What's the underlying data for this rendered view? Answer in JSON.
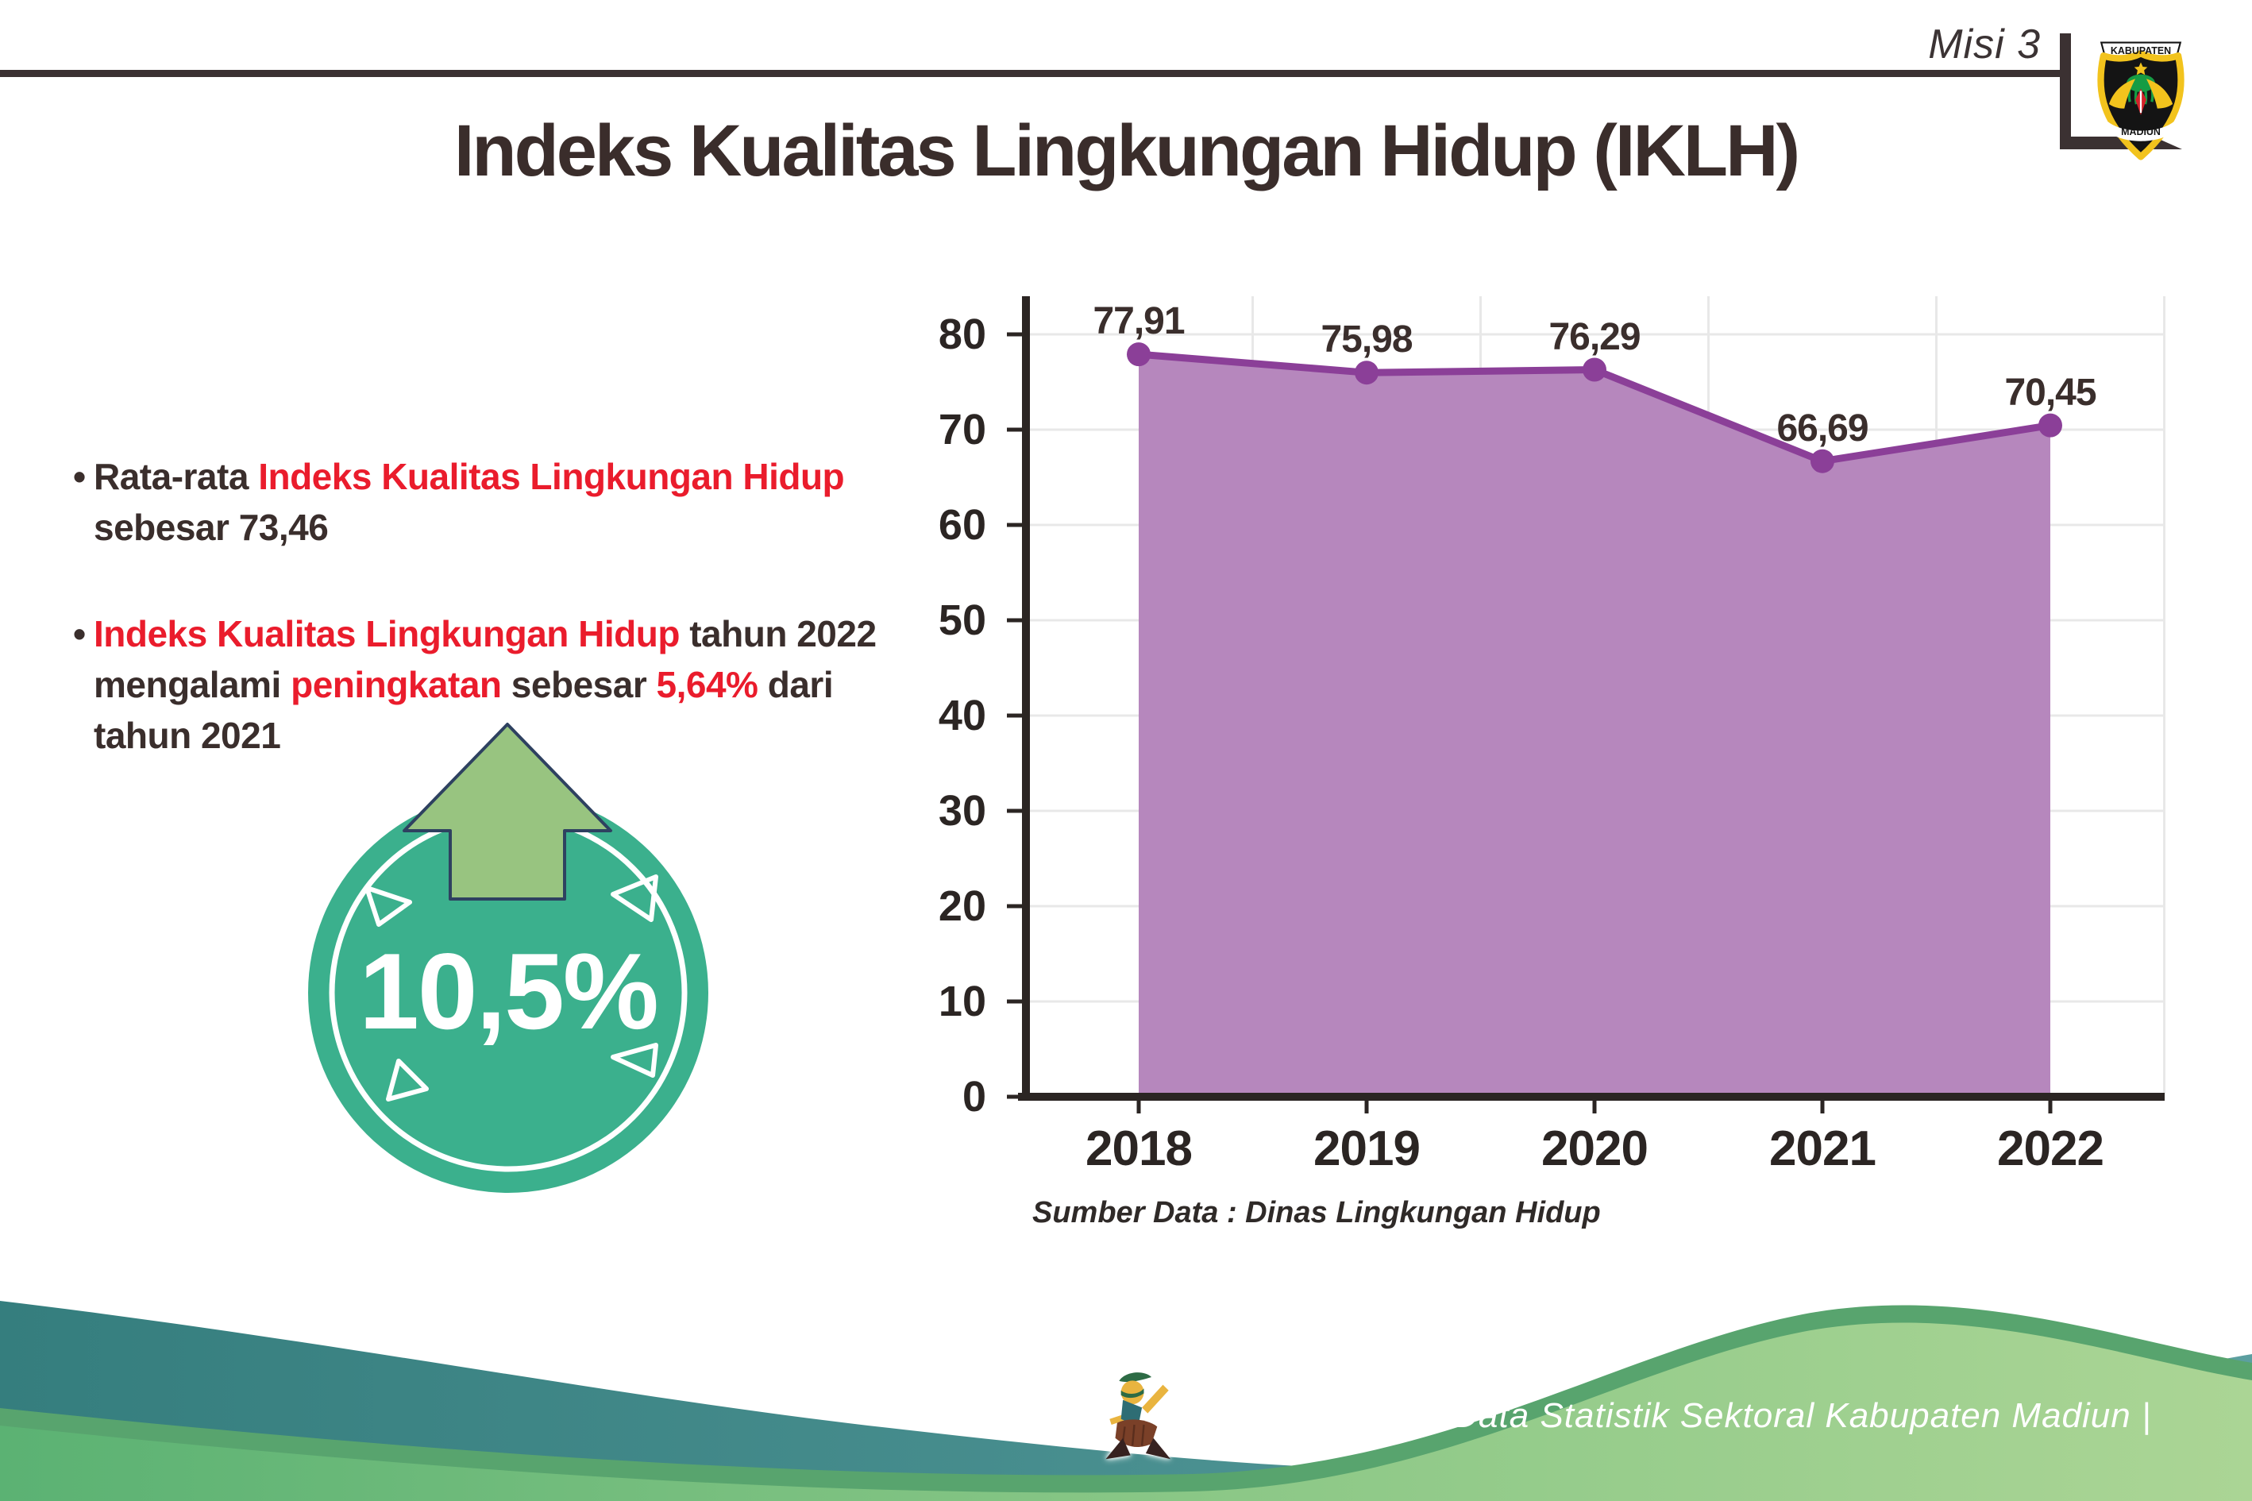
{
  "page": {
    "misi_label": "Misi 3"
  },
  "logo": {
    "top_text": "KABUPATEN",
    "bottom_text": "MADIUN"
  },
  "title": "Indeks Kualitas Lingkungan Hidup (IKLH)",
  "bullets": {
    "marker": "•",
    "b1_seg1": "Rata-rata ",
    "b1_seg2": "Indeks Kualitas Lingkungan Hidup",
    "b1_line2": "sebesar 73,46",
    "b2_seg1": "Indeks Kualitas Lingkungan Hidup",
    "b2_seg2": " tahun 2022",
    "b2_seg3": "mengalami ",
    "b2_seg4": "peningkatan",
    "b2_seg5": " sebesar ",
    "b2_seg6": "5,64%",
    "b2_seg7": " dari",
    "b2_line3": "tahun 2021"
  },
  "badge": {
    "value": "10,5%"
  },
  "chart_data": {
    "type": "area",
    "categories": [
      "2018",
      "2019",
      "2020",
      "2021",
      "2022"
    ],
    "values": [
      77.91,
      75.98,
      76.29,
      66.69,
      70.45
    ],
    "value_labels": [
      "77,91",
      "75,98",
      "76,29",
      "66,69",
      "70,45"
    ],
    "title": "",
    "xlabel": "",
    "ylabel": "",
    "ylim": [
      0,
      80
    ],
    "ytick_step": 10,
    "grid": true,
    "legend": "none",
    "source_note": "Sumber Data : Dinas Lingkungan Hidup",
    "line_color": "#8b3f98",
    "fill_color": "#b687bd",
    "axis_color": "#2b2523",
    "grid_color": "#e8e8e8",
    "label_color": "#3a2e2c"
  },
  "footer": {
    "caption": "Media Infografis Data Statistik Sektoral Kabupaten Madiun |"
  },
  "colors": {
    "dark_text": "#3a2e2c",
    "red_text": "#ea1c2c",
    "badge_teal": "#3bb08d",
    "arrow_green": "#98c480",
    "arrow_outline": "#2e4160",
    "footer_teal": "#3d8a88",
    "footer_green": "#6fbd81",
    "rule_color": "#3b3132"
  }
}
